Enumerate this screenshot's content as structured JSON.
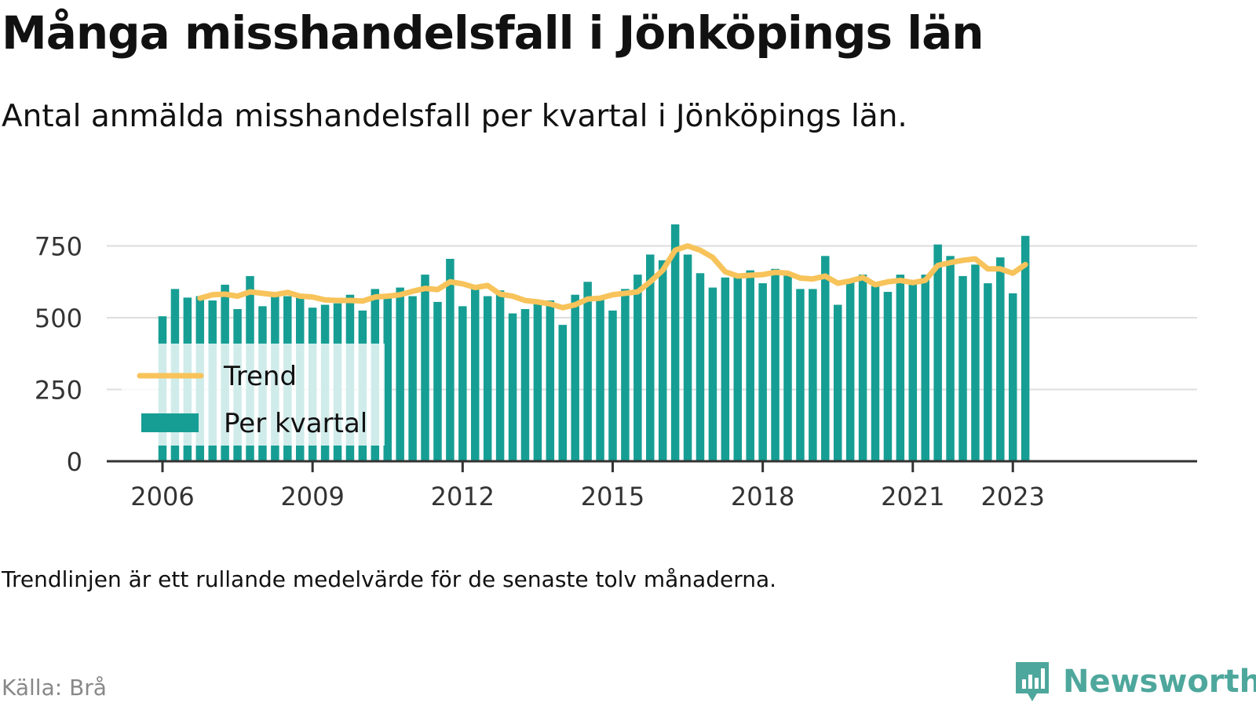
{
  "title": "Många misshandelsfall i Jönköpings län",
  "subtitle": "Antal anmälda misshandelsfall per kvartal i Jönköpings län.",
  "note": "Trendlinjen är ett rullande medelvärde för de senaste tolv månaderna.",
  "source": "Källa: Brå",
  "brand": {
    "name": "Newsworthy",
    "color": "#4ea79c",
    "icon": "newsworthy-logo-icon"
  },
  "chart_data": {
    "type": "bar",
    "ylim": [
      0,
      800
    ],
    "yticks": [
      "0",
      "250",
      "500",
      "750"
    ],
    "ytick_values": [
      0,
      250,
      500,
      750
    ],
    "grid": true,
    "xticks": [
      {
        "label": "2006",
        "quarter": "2006 Q1"
      },
      {
        "label": "2009",
        "quarter": "2009 Q1"
      },
      {
        "label": "2012",
        "quarter": "2012 Q1"
      },
      {
        "label": "2015",
        "quarter": "2015 Q1"
      },
      {
        "label": "2018",
        "quarter": "2018 Q1"
      },
      {
        "label": "2021",
        "quarter": "2021 Q1"
      },
      {
        "label": "2023",
        "quarter": "2023 Q1"
      }
    ],
    "legend": {
      "placement": "bottom-left",
      "trend_label": "Trend",
      "bar_label": "Per kvartal"
    },
    "colors": {
      "bars": "#169e94",
      "trend": "#f7c35a",
      "axis": "#333333",
      "grid": "#dddddd"
    },
    "categories": [
      "2006 Q1",
      "2006 Q2",
      "2006 Q3",
      "2006 Q4",
      "2007 Q1",
      "2007 Q2",
      "2007 Q3",
      "2007 Q4",
      "2008 Q1",
      "2008 Q2",
      "2008 Q3",
      "2008 Q4",
      "2009 Q1",
      "2009 Q2",
      "2009 Q3",
      "2009 Q4",
      "2010 Q1",
      "2010 Q2",
      "2010 Q3",
      "2010 Q4",
      "2011 Q1",
      "2011 Q2",
      "2011 Q3",
      "2011 Q4",
      "2012 Q1",
      "2012 Q2",
      "2012 Q3",
      "2012 Q4",
      "2013 Q1",
      "2013 Q2",
      "2013 Q3",
      "2013 Q4",
      "2014 Q1",
      "2014 Q2",
      "2014 Q3",
      "2014 Q4",
      "2015 Q1",
      "2015 Q2",
      "2015 Q3",
      "2015 Q4",
      "2016 Q1",
      "2016 Q2",
      "2016 Q3",
      "2016 Q4",
      "2017 Q1",
      "2017 Q2",
      "2017 Q3",
      "2017 Q4",
      "2018 Q1",
      "2018 Q2",
      "2018 Q3",
      "2018 Q4",
      "2019 Q1",
      "2019 Q2",
      "2019 Q3",
      "2019 Q4",
      "2020 Q1",
      "2020 Q2",
      "2020 Q3",
      "2020 Q4",
      "2021 Q1",
      "2021 Q2",
      "2021 Q3",
      "2021 Q4",
      "2022 Q1",
      "2022 Q2",
      "2022 Q3",
      "2022 Q4",
      "2023 Q1",
      "2023 Q2"
    ],
    "series": [
      {
        "name": "Per kvartal",
        "kind": "bar",
        "values": [
          505,
          600,
          570,
          575,
          560,
          615,
          530,
          645,
          540,
          580,
          575,
          570,
          535,
          545,
          550,
          580,
          525,
          600,
          575,
          605,
          575,
          650,
          555,
          705,
          540,
          605,
          575,
          595,
          515,
          530,
          555,
          560,
          475,
          580,
          625,
          565,
          525,
          600,
          650,
          720,
          700,
          825,
          720,
          655,
          605,
          640,
          640,
          665,
          620,
          670,
          655,
          600,
          600,
          715,
          545,
          625,
          650,
          610,
          590,
          650,
          625,
          650,
          755,
          715,
          645,
          685,
          620,
          710,
          585,
          785
        ]
      },
      {
        "name": "Trend",
        "kind": "line",
        "values": [
          null,
          null,
          null,
          568,
          580,
          582,
          575,
          590,
          585,
          580,
          588,
          575,
          572,
          562,
          560,
          560,
          558,
          572,
          575,
          580,
          592,
          602,
          598,
          625,
          618,
          605,
          612,
          582,
          575,
          560,
          555,
          548,
          535,
          545,
          565,
          568,
          580,
          585,
          590,
          625,
          665,
          735,
          750,
          735,
          710,
          660,
          645,
          648,
          650,
          658,
          655,
          638,
          635,
          645,
          620,
          628,
          640,
          615,
          625,
          630,
          622,
          630,
          682,
          692,
          700,
          705,
          670,
          670,
          655,
          685
        ]
      }
    ]
  }
}
